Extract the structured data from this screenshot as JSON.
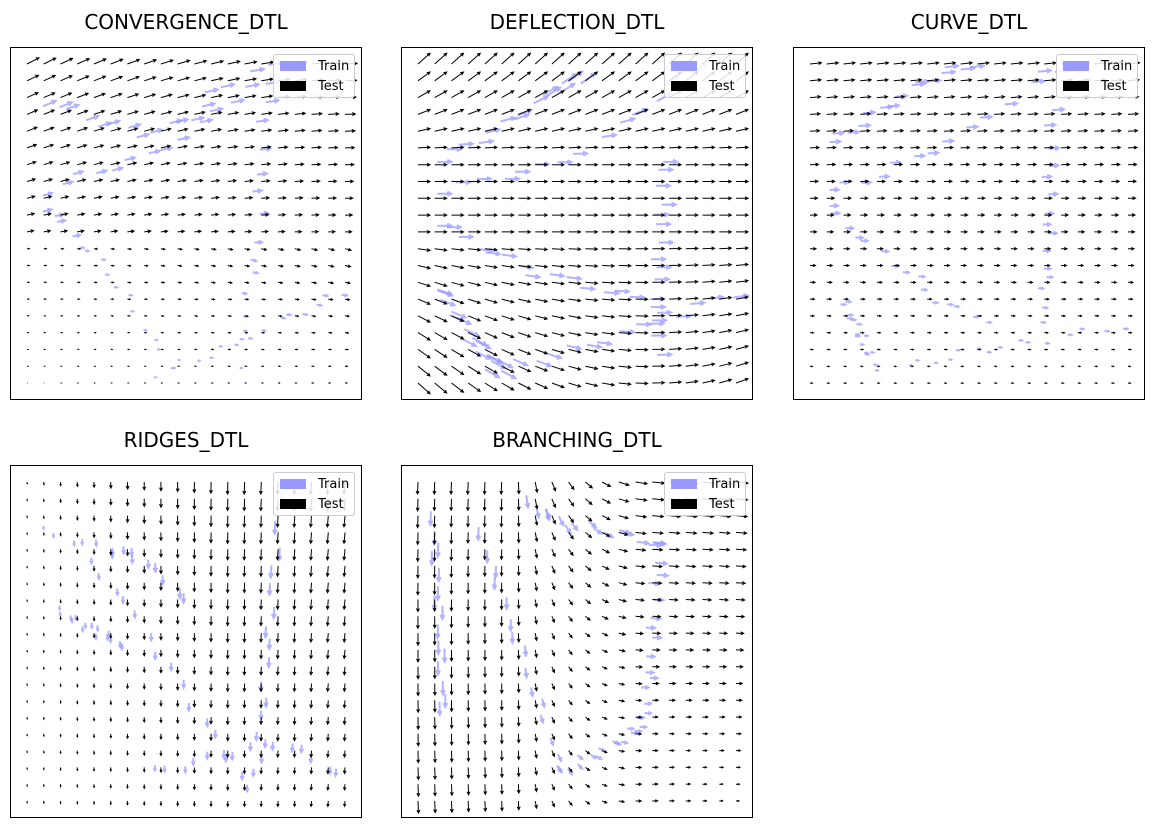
{
  "colors": {
    "train": "#9999ff",
    "test": "#000000"
  },
  "chart_data": [
    {
      "type": "quiver",
      "title": "CONVERGENCE_DTL",
      "legend": {
        "position": "top-right",
        "entries": [
          "Train",
          "Test"
        ]
      },
      "axes": {
        "ticks": "none",
        "grid": false,
        "xlim": [
          0,
          1
        ],
        "ylim": [
          0,
          1
        ]
      },
      "field": "convergence",
      "series": [
        {
          "name": "Train",
          "kind": "sampled vectors",
          "color": "#9999ff"
        },
        {
          "name": "Test",
          "kind": "regular grid vectors",
          "color": "#000000",
          "grid": [
            20,
            20
          ]
        }
      ]
    },
    {
      "type": "quiver",
      "title": "DEFLECTION_DTL",
      "legend": {
        "position": "top-right",
        "entries": [
          "Train",
          "Test"
        ]
      },
      "axes": {
        "ticks": "none",
        "grid": false,
        "xlim": [
          0,
          1
        ],
        "ylim": [
          0,
          1
        ]
      },
      "field": "deflection",
      "series": [
        {
          "name": "Train",
          "kind": "sampled vectors",
          "color": "#9999ff"
        },
        {
          "name": "Test",
          "kind": "regular grid vectors",
          "color": "#000000",
          "grid": [
            20,
            20
          ]
        }
      ]
    },
    {
      "type": "quiver",
      "title": "CURVE_DTL",
      "legend": {
        "position": "top-right",
        "entries": [
          "Train",
          "Test"
        ]
      },
      "axes": {
        "ticks": "none",
        "grid": false,
        "xlim": [
          0,
          1
        ],
        "ylim": [
          0,
          1
        ]
      },
      "field": "curve",
      "series": [
        {
          "name": "Train",
          "kind": "sampled vectors",
          "color": "#9999ff"
        },
        {
          "name": "Test",
          "kind": "regular grid vectors",
          "color": "#000000",
          "grid": [
            20,
            20
          ]
        }
      ]
    },
    {
      "type": "quiver",
      "title": "RIDGES_DTL",
      "legend": {
        "position": "top-right",
        "entries": [
          "Train",
          "Test"
        ]
      },
      "axes": {
        "ticks": "none",
        "grid": false,
        "xlim": [
          0,
          1
        ],
        "ylim": [
          0,
          1
        ]
      },
      "field": "ridges",
      "series": [
        {
          "name": "Train",
          "kind": "sampled vectors",
          "color": "#9999ff"
        },
        {
          "name": "Test",
          "kind": "regular grid vectors",
          "color": "#000000",
          "grid": [
            20,
            20
          ]
        }
      ]
    },
    {
      "type": "quiver",
      "title": "BRANCHING_DTL",
      "legend": {
        "position": "top-right",
        "entries": [
          "Train",
          "Test"
        ]
      },
      "axes": {
        "ticks": "none",
        "grid": false,
        "xlim": [
          0,
          1
        ],
        "ylim": [
          0,
          1
        ]
      },
      "field": "branching",
      "series": [
        {
          "name": "Train",
          "kind": "sampled vectors",
          "color": "#9999ff"
        },
        {
          "name": "Test",
          "kind": "regular grid vectors",
          "color": "#000000",
          "grid": [
            20,
            20
          ]
        }
      ]
    }
  ]
}
